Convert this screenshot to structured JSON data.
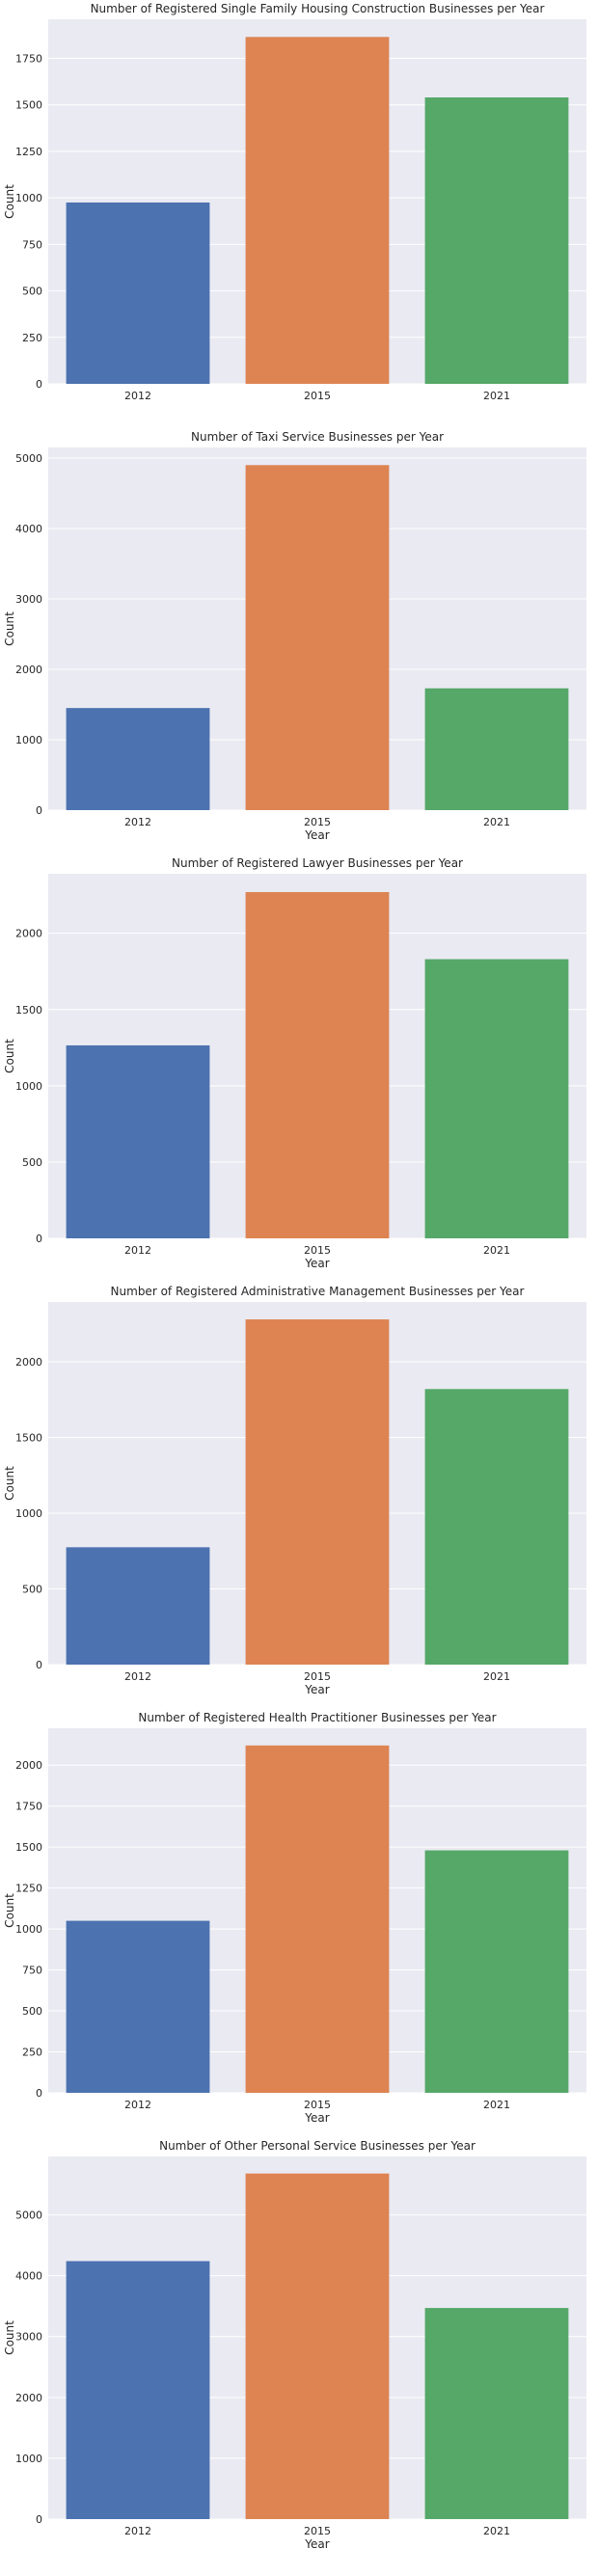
{
  "chart_data": [
    {
      "type": "bar",
      "title": "Number of Registered Single Family Housing Construction Businesses per Year",
      "xlabel": "",
      "ylabel": "Count",
      "categories": [
        "2012",
        "2015",
        "2021"
      ],
      "values": [
        975,
        1865,
        1540
      ],
      "ylim": [
        0,
        1960
      ],
      "yticks": [
        0,
        250,
        500,
        750,
        1000,
        1250,
        1500,
        1750
      ],
      "colors": [
        "#4c72b0",
        "#dd8452",
        "#55a868"
      ],
      "grid": true
    },
    {
      "type": "bar",
      "title": "Number of Taxi Service Businesses per Year",
      "xlabel": "Year",
      "ylabel": "Count",
      "categories": [
        "2012",
        "2015",
        "2021"
      ],
      "values": [
        1450,
        4900,
        1730
      ],
      "ylim": [
        0,
        5150
      ],
      "yticks": [
        0,
        1000,
        2000,
        3000,
        4000,
        5000
      ],
      "colors": [
        "#4c72b0",
        "#dd8452",
        "#55a868"
      ],
      "grid": true
    },
    {
      "type": "bar",
      "title": "Number of Registered Lawyer Businesses per Year",
      "xlabel": "Year",
      "ylabel": "Count",
      "categories": [
        "2012",
        "2015",
        "2021"
      ],
      "values": [
        1265,
        2270,
        1830
      ],
      "ylim": [
        0,
        2390
      ],
      "yticks": [
        0,
        500,
        1000,
        1500,
        2000
      ],
      "colors": [
        "#4c72b0",
        "#dd8452",
        "#55a868"
      ],
      "grid": true
    },
    {
      "type": "bar",
      "title": "Number of Registered Administrative Management Businesses per Year",
      "xlabel": "Year",
      "ylabel": "Count",
      "categories": [
        "2012",
        "2015",
        "2021"
      ],
      "values": [
        775,
        2280,
        1820
      ],
      "ylim": [
        0,
        2395
      ],
      "yticks": [
        0,
        500,
        1000,
        1500,
        2000
      ],
      "colors": [
        "#4c72b0",
        "#dd8452",
        "#55a868"
      ],
      "grid": true
    },
    {
      "type": "bar",
      "title": "Number of Registered Health Practitioner Businesses per Year",
      "xlabel": "Year",
      "ylabel": "Count",
      "categories": [
        "2012",
        "2015",
        "2021"
      ],
      "values": [
        1050,
        2120,
        1480
      ],
      "ylim": [
        0,
        2225
      ],
      "yticks": [
        0,
        250,
        500,
        750,
        1000,
        1250,
        1500,
        1750,
        2000
      ],
      "colors": [
        "#4c72b0",
        "#dd8452",
        "#55a868"
      ],
      "grid": true
    },
    {
      "type": "bar",
      "title": "Number of Other Personal Service Businesses per Year",
      "xlabel": "Year",
      "ylabel": "Count",
      "categories": [
        "2012",
        "2015",
        "2021"
      ],
      "values": [
        4240,
        5680,
        3470
      ],
      "ylim": [
        0,
        5960
      ],
      "yticks": [
        0,
        1000,
        2000,
        3000,
        4000,
        5000
      ],
      "colors": [
        "#4c72b0",
        "#dd8452",
        "#55a868"
      ],
      "grid": true
    }
  ]
}
